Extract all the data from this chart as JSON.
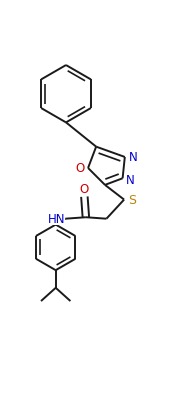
{
  "bg_color": "#ffffff",
  "bond_color": "#1a1a1a",
  "N_color": "#0000cd",
  "O_color": "#cc0000",
  "S_color": "#b8860b",
  "lw": 1.4,
  "dbo": 0.015,
  "figsize": [
    1.82,
    4.1
  ],
  "dpi": 100,
  "xlim": [
    -0.1,
    1.1
  ],
  "ylim": [
    0.0,
    2.3
  ]
}
